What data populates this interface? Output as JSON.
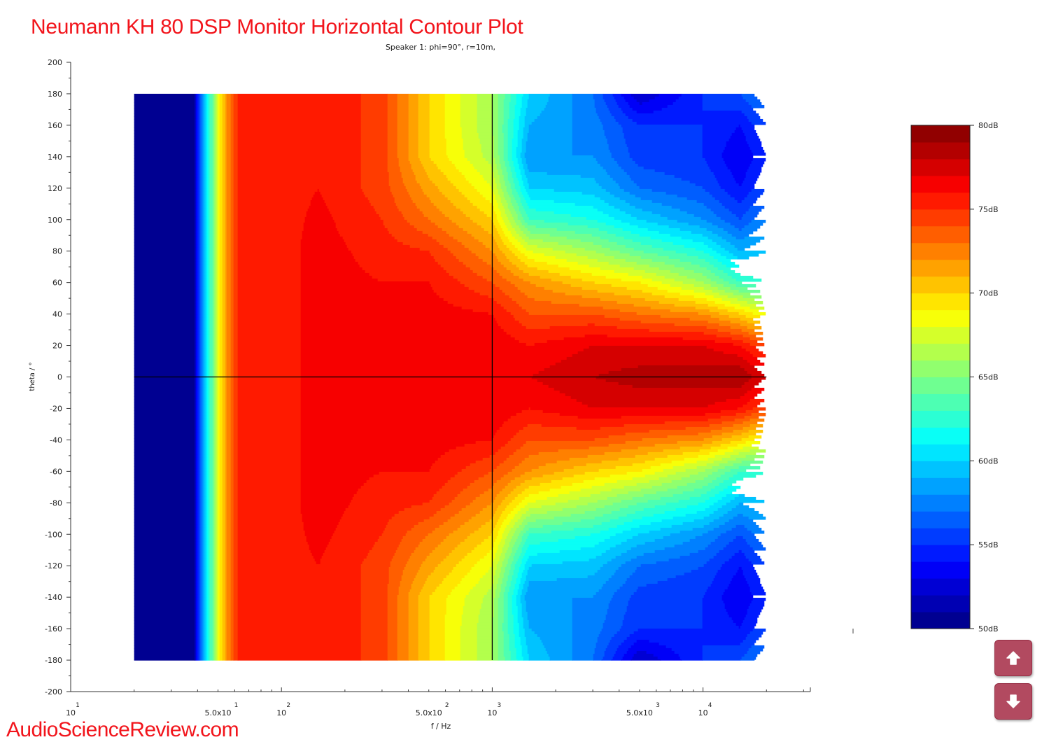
{
  "header": {
    "title": "Neumann KH 80 DSP Monitor Horizontal Contour Plot",
    "watermark": "AudioScienceReview.com"
  },
  "nav": {
    "up_icon": "arrow-up-icon",
    "down_icon": "arrow-down-icon"
  },
  "chart_data": {
    "type": "heatmap",
    "title": "Speaker 1: phi=90°, r=10m,",
    "xlabel": "f / Hz",
    "ylabel": "theta / °",
    "xscale": "log",
    "xlim": [
      10,
      32000
    ],
    "ylim": [
      -200,
      200
    ],
    "data_xrange": [
      20,
      20000
    ],
    "data_yrange": [
      -180,
      180
    ],
    "yticks": [
      200,
      180,
      160,
      140,
      120,
      100,
      80,
      60,
      40,
      20,
      0,
      -20,
      -40,
      -60,
      -80,
      -100,
      -120,
      -140,
      -160,
      -180,
      -200
    ],
    "xticks": [
      {
        "value": 10,
        "mant": "10",
        "exp": "1"
      },
      {
        "value": 50,
        "mant": "5.0x10",
        "exp": "1"
      },
      {
        "value": 100,
        "mant": "10",
        "exp": "2"
      },
      {
        "value": 500,
        "mant": "5.0x10",
        "exp": "2"
      },
      {
        "value": 1000,
        "mant": "10",
        "exp": "3"
      },
      {
        "value": 5000,
        "mant": "5.0x10",
        "exp": "3"
      },
      {
        "value": 10000,
        "mant": "10",
        "exp": "4"
      }
    ],
    "crosshair": {
      "frequency": 1000,
      "theta": 0
    },
    "symmetric_in_theta": true,
    "angles": [
      0,
      20,
      40,
      60,
      80,
      100,
      120,
      140,
      160,
      180
    ],
    "frequencies": [
      20,
      38,
      42,
      46,
      50,
      55,
      62,
      100,
      150,
      300,
      500,
      1000,
      1500,
      3000,
      5000,
      10000,
      15000,
      20000
    ],
    "values_db": [
      [
        50,
        50,
        50,
        50,
        50,
        50,
        50,
        50,
        50,
        50
      ],
      [
        50,
        50,
        50,
        50,
        50,
        50,
        50,
        50,
        50,
        50
      ],
      [
        58,
        58,
        58,
        58,
        58,
        58,
        58,
        58,
        58,
        58
      ],
      [
        63,
        63,
        63,
        63,
        63,
        63,
        63,
        63,
        63,
        63
      ],
      [
        68,
        68,
        68,
        68,
        68,
        68,
        68,
        68,
        68,
        68
      ],
      [
        72,
        72,
        72,
        72,
        72,
        72,
        72,
        72,
        72,
        72
      ],
      [
        75,
        75,
        75,
        75,
        75,
        75,
        75,
        75,
        75,
        75
      ],
      [
        75.5,
        75.5,
        75.5,
        75.5,
        75.5,
        75.5,
        75.5,
        75.5,
        75.5,
        75.5
      ],
      [
        76.5,
        76.5,
        76.5,
        76.5,
        76.5,
        76.3,
        76,
        76,
        76,
        76
      ],
      [
        76.5,
        76.5,
        76.3,
        76,
        75.5,
        75,
        74.5,
        74.5,
        74.5,
        74.5
      ],
      [
        77,
        77,
        76.5,
        76,
        75,
        73,
        71.5,
        70,
        70,
        70
      ],
      [
        77,
        76.8,
        76,
        74,
        72,
        70,
        68,
        66.5,
        66,
        66
      ],
      [
        77,
        76,
        74,
        72,
        68,
        63,
        60,
        58,
        59,
        60
      ],
      [
        78,
        77,
        74,
        70,
        66,
        62,
        59.5,
        58,
        57.5,
        57
      ],
      [
        78.5,
        77,
        73,
        69,
        64,
        60,
        57,
        55.5,
        55,
        52
      ],
      [
        78.5,
        77,
        72,
        66,
        62,
        58,
        56,
        55,
        55,
        55
      ],
      [
        79,
        76,
        70,
        63,
        59,
        56,
        54,
        53,
        54,
        56
      ],
      [
        77,
        74,
        68,
        62,
        60,
        58,
        56,
        55,
        56,
        58
      ]
    ],
    "colorbar": {
      "min": 50,
      "max": 80,
      "levels": 30,
      "colormap": "jet",
      "ticks": [
        {
          "value": 80,
          "label": "80dB"
        },
        {
          "value": 75,
          "label": "75dB"
        },
        {
          "value": 70,
          "label": "70dB"
        },
        {
          "value": 65,
          "label": "65dB"
        },
        {
          "value": 60,
          "label": "60dB"
        },
        {
          "value": 55,
          "label": "55dB"
        },
        {
          "value": 50,
          "label": "50dB"
        }
      ]
    }
  }
}
